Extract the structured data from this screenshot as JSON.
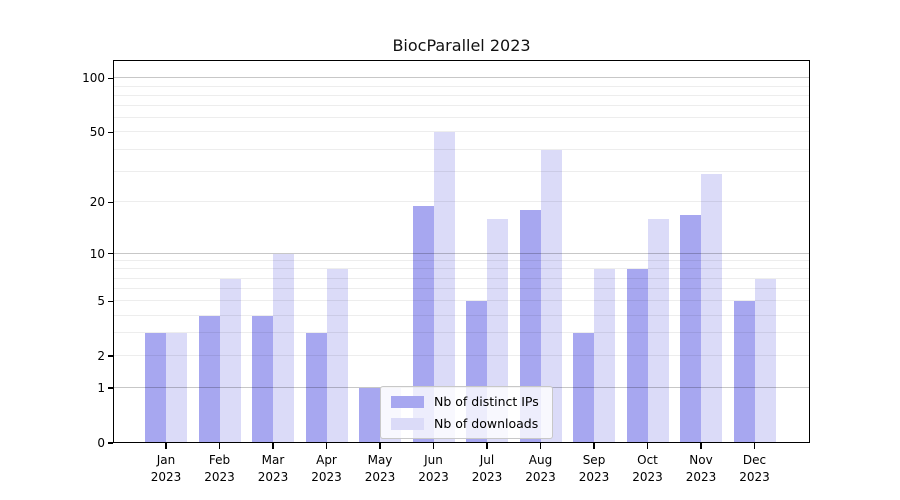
{
  "figure": {
    "background": "#ffffff"
  },
  "chart_data": {
    "type": "bar",
    "title": "BiocParallel 2023",
    "categories": [
      "Jan 2023",
      "Feb 2023",
      "Mar 2023",
      "Apr 2023",
      "May 2023",
      "Jun 2023",
      "Jul 2023",
      "Aug 2023",
      "Sep 2023",
      "Oct 2023",
      "Nov 2023",
      "Dec 2023"
    ],
    "x_tick_months": [
      "Jan",
      "Feb",
      "Mar",
      "Apr",
      "May",
      "Jun",
      "Jul",
      "Aug",
      "Sep",
      "Oct",
      "Nov",
      "Dec"
    ],
    "x_tick_year": "2023",
    "series": [
      {
        "name": "Nb of distinct IPs",
        "color": "#a7a7f0",
        "values": [
          3,
          4,
          4,
          3,
          1,
          19,
          5,
          18,
          3,
          8,
          17,
          5
        ]
      },
      {
        "name": "Nb of downloads",
        "color": "#dbdbf8",
        "values": [
          3,
          7,
          10,
          8,
          1,
          50,
          16,
          40,
          8,
          16,
          29,
          7
        ]
      }
    ],
    "y_axis": {
      "scale": "log1p",
      "tick_values": [
        0,
        1,
        2,
        5,
        10,
        20,
        50,
        100
      ],
      "major_gridlines": [
        1,
        10,
        100
      ],
      "minor_gridlines": [
        2,
        3,
        4,
        5,
        6,
        7,
        8,
        9,
        20,
        30,
        40,
        50,
        60,
        70,
        80,
        90
      ],
      "ylim": [
        0,
        100
      ]
    },
    "legend": {
      "position": "lower-center",
      "entries": [
        "Nb of distinct IPs",
        "Nb of downloads"
      ]
    },
    "grid": "on"
  }
}
